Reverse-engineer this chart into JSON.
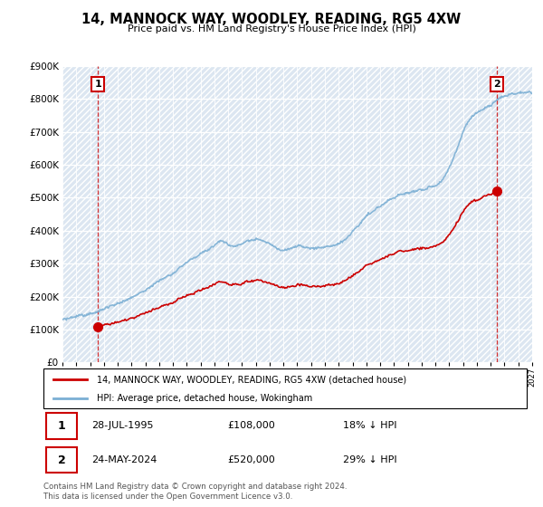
{
  "title": "14, MANNOCK WAY, WOODLEY, READING, RG5 4XW",
  "subtitle": "Price paid vs. HM Land Registry's House Price Index (HPI)",
  "ylim": [
    0,
    900000
  ],
  "yticks": [
    0,
    100000,
    200000,
    300000,
    400000,
    500000,
    600000,
    700000,
    800000,
    900000
  ],
  "ytick_labels": [
    "£0",
    "£100K",
    "£200K",
    "£300K",
    "£400K",
    "£500K",
    "£600K",
    "£700K",
    "£800K",
    "£900K"
  ],
  "hpi_color": "#7bafd4",
  "price_color": "#cc0000",
  "point1_x": 1995.583,
  "point1_price": 108000,
  "point2_x": 2024.417,
  "point2_price": 520000,
  "legend_line1": "14, MANNOCK WAY, WOODLEY, READING, RG5 4XW (detached house)",
  "legend_line2": "HPI: Average price, detached house, Wokingham",
  "point1_date": "28-JUL-1995",
  "point1_hpi_pct": "18% ↓ HPI",
  "point2_date": "24-MAY-2024",
  "point2_hpi_pct": "29% ↓ HPI",
  "footer": "Contains HM Land Registry data © Crown copyright and database right 2024.\nThis data is licensed under the Open Government Licence v3.0.",
  "plot_bg": "#dce6f1",
  "grid_color": "#ffffff",
  "xlim": [
    1993,
    2027
  ],
  "hpi_seed": 10,
  "price_seed": 20
}
